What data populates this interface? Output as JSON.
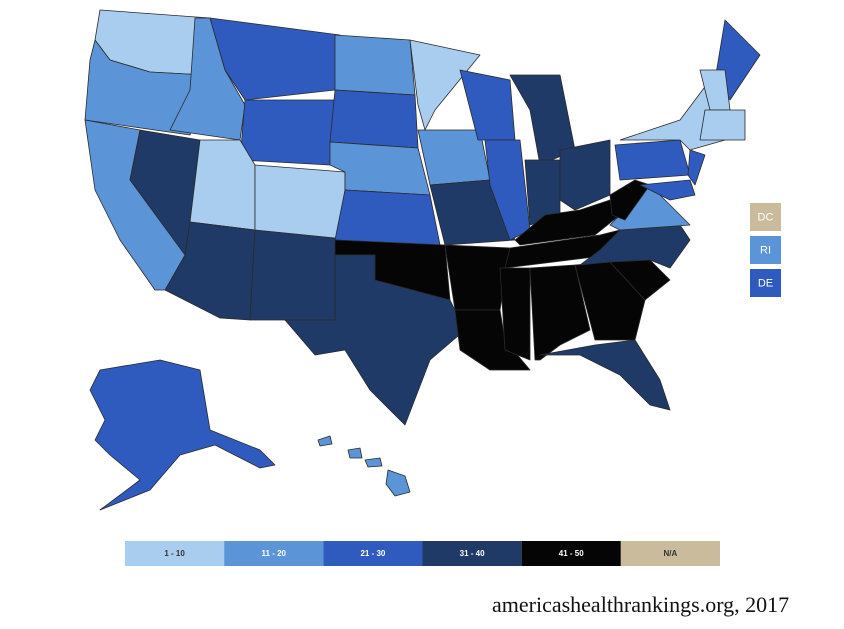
{
  "side_boxes": [
    {
      "label": "DC",
      "color": "#c9bb9c"
    },
    {
      "label": "RI",
      "color": "#5b95d8"
    },
    {
      "label": "DE",
      "color": "#2f5bbf"
    }
  ],
  "legend": {
    "items": [
      {
        "label": "1 - 10",
        "color": "#a9cdee"
      },
      {
        "label": "11 - 20",
        "color": "#5b95d8"
      },
      {
        "label": "21 - 30",
        "color": "#2f5bbf"
      },
      {
        "label": "31 - 40",
        "color": "#1f3a66"
      },
      {
        "label": "41 - 50",
        "color": "#050505"
      },
      {
        "label": "N/A",
        "color": "#c9bb9c"
      }
    ]
  },
  "source": "americashealthrankings.org, 2017"
}
